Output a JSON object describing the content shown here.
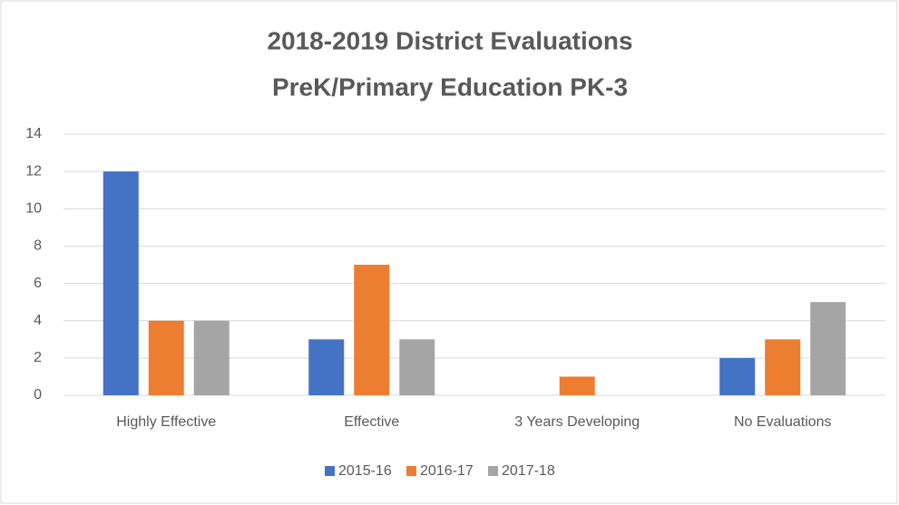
{
  "chart_data": {
    "type": "bar",
    "title": "2018-2019 District Evaluations",
    "subtitle": "PreK/Primary Education PK-3",
    "categories": [
      "Highly Effective",
      "Effective",
      "3 Years Developing",
      "No Evaluations"
    ],
    "series": [
      {
        "name": "2015-16",
        "color": "#4472c4",
        "values": [
          12,
          3,
          0,
          2
        ]
      },
      {
        "name": "2016-17",
        "color": "#ed7d31",
        "values": [
          4,
          7,
          1,
          3
        ]
      },
      {
        "name": "2017-18",
        "color": "#a5a5a5",
        "values": [
          4,
          3,
          0,
          5
        ]
      }
    ],
    "ylim": [
      0,
      14
    ],
    "yticks": [
      0,
      2,
      4,
      6,
      8,
      10,
      12,
      14
    ],
    "grid": true,
    "legend": "bottom"
  }
}
